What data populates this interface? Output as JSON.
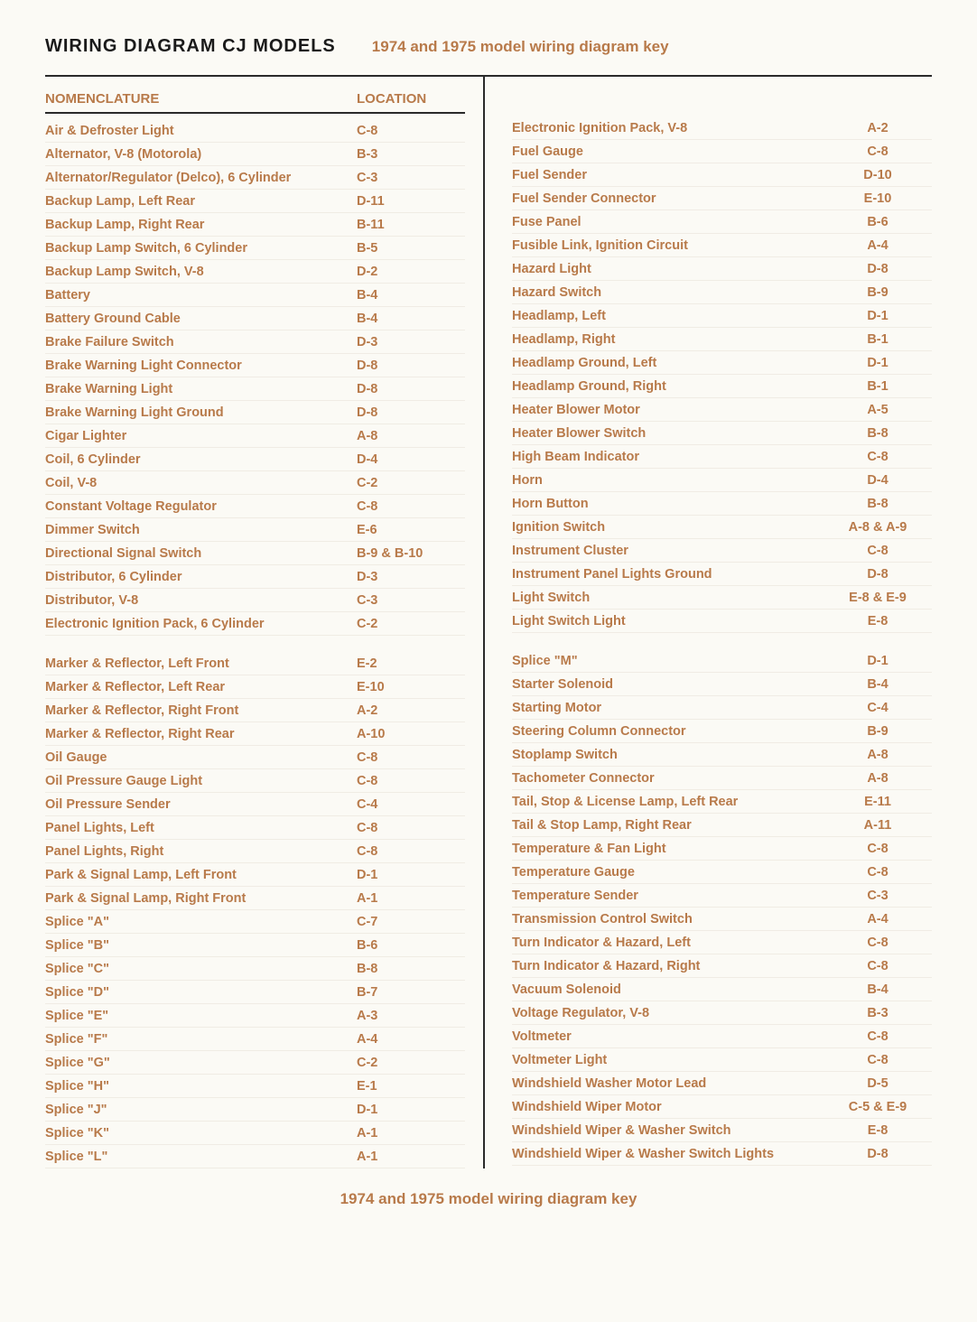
{
  "header": {
    "title": "WIRING DIAGRAM CJ MODELS",
    "subtitle": "1974 and 1975 model wiring diagram key"
  },
  "columnHeaders": {
    "name": "NOMENCLATURE",
    "location": "LOCATION"
  },
  "left": {
    "group1": [
      {
        "name": "Air & Defroster Light",
        "loc": "C-8"
      },
      {
        "name": "Alternator, V-8 (Motorola)",
        "loc": "B-3"
      },
      {
        "name": "Alternator/Regulator (Delco), 6 Cylinder",
        "loc": "C-3"
      },
      {
        "name": "Backup Lamp, Left Rear",
        "loc": "D-11"
      },
      {
        "name": "Backup Lamp, Right Rear",
        "loc": "B-11"
      },
      {
        "name": "Backup Lamp Switch, 6 Cylinder",
        "loc": "B-5"
      },
      {
        "name": "Backup Lamp Switch, V-8",
        "loc": "D-2"
      },
      {
        "name": "Battery",
        "loc": "B-4"
      },
      {
        "name": "Battery Ground Cable",
        "loc": "B-4"
      },
      {
        "name": "Brake Failure Switch",
        "loc": "D-3"
      },
      {
        "name": "Brake Warning Light Connector",
        "loc": "D-8"
      },
      {
        "name": "Brake Warning Light",
        "loc": "D-8"
      },
      {
        "name": "Brake Warning Light Ground",
        "loc": "D-8"
      },
      {
        "name": "Cigar Lighter",
        "loc": "A-8"
      },
      {
        "name": "Coil, 6 Cylinder",
        "loc": "D-4"
      },
      {
        "name": "Coil, V-8",
        "loc": "C-2"
      },
      {
        "name": "Constant Voltage Regulator",
        "loc": "C-8"
      },
      {
        "name": "Dimmer Switch",
        "loc": "E-6"
      },
      {
        "name": "Directional Signal Switch",
        "loc": "B-9 & B-10"
      },
      {
        "name": "Distributor, 6 Cylinder",
        "loc": "D-3"
      },
      {
        "name": "Distributor, V-8",
        "loc": "C-3"
      },
      {
        "name": "Electronic Ignition Pack, 6 Cylinder",
        "loc": "C-2"
      }
    ],
    "group2": [
      {
        "name": "Marker & Reflector, Left Front",
        "loc": "E-2"
      },
      {
        "name": "Marker & Reflector, Left Rear",
        "loc": "E-10"
      },
      {
        "name": "Marker & Reflector, Right Front",
        "loc": "A-2"
      },
      {
        "name": "Marker & Reflector, Right Rear",
        "loc": "A-10"
      },
      {
        "name": "Oil Gauge",
        "loc": "C-8"
      },
      {
        "name": "Oil Pressure Gauge Light",
        "loc": "C-8"
      },
      {
        "name": "Oil Pressure Sender",
        "loc": "C-4"
      },
      {
        "name": "Panel Lights, Left",
        "loc": "C-8"
      },
      {
        "name": "Panel Lights, Right",
        "loc": "C-8"
      },
      {
        "name": "Park & Signal Lamp, Left Front",
        "loc": "D-1"
      },
      {
        "name": "Park & Signal Lamp, Right Front",
        "loc": "A-1"
      },
      {
        "name": "Splice \"A\"",
        "loc": "C-7"
      },
      {
        "name": "Splice \"B\"",
        "loc": "B-6"
      },
      {
        "name": "Splice \"C\"",
        "loc": "B-8"
      },
      {
        "name": "Splice \"D\"",
        "loc": "B-7"
      },
      {
        "name": "Splice \"E\"",
        "loc": "A-3"
      },
      {
        "name": "Splice \"F\"",
        "loc": "A-4"
      },
      {
        "name": "Splice \"G\"",
        "loc": "C-2"
      },
      {
        "name": "Splice \"H\"",
        "loc": "E-1"
      },
      {
        "name": "Splice \"J\"",
        "loc": "D-1"
      },
      {
        "name": "Splice \"K\"",
        "loc": "A-1"
      },
      {
        "name": "Splice \"L\"",
        "loc": "A-1"
      }
    ]
  },
  "right": {
    "group1": [
      {
        "name": "Electronic Ignition Pack, V-8",
        "loc": "A-2"
      },
      {
        "name": "Fuel Gauge",
        "loc": "C-8"
      },
      {
        "name": "Fuel Sender",
        "loc": "D-10"
      },
      {
        "name": "Fuel Sender Connector",
        "loc": "E-10"
      },
      {
        "name": "Fuse Panel",
        "loc": "B-6"
      },
      {
        "name": "Fusible Link, Ignition Circuit",
        "loc": "A-4"
      },
      {
        "name": "Hazard Light",
        "loc": "D-8"
      },
      {
        "name": "Hazard Switch",
        "loc": "B-9"
      },
      {
        "name": "Headlamp, Left",
        "loc": "D-1"
      },
      {
        "name": "Headlamp, Right",
        "loc": "B-1"
      },
      {
        "name": "Headlamp Ground, Left",
        "loc": "D-1"
      },
      {
        "name": "Headlamp Ground, Right",
        "loc": "B-1"
      },
      {
        "name": "Heater Blower Motor",
        "loc": "A-5"
      },
      {
        "name": "Heater Blower Switch",
        "loc": "B-8"
      },
      {
        "name": "High Beam Indicator",
        "loc": "C-8"
      },
      {
        "name": "Horn",
        "loc": "D-4"
      },
      {
        "name": "Horn Button",
        "loc": "B-8"
      },
      {
        "name": "Ignition Switch",
        "loc": "A-8 & A-9"
      },
      {
        "name": "Instrument Cluster",
        "loc": "C-8"
      },
      {
        "name": "Instrument Panel Lights Ground",
        "loc": "D-8"
      },
      {
        "name": "Light Switch",
        "loc": "E-8 & E-9"
      },
      {
        "name": "Light Switch Light",
        "loc": "E-8"
      }
    ],
    "group2": [
      {
        "name": "Splice \"M\"",
        "loc": "D-1"
      },
      {
        "name": "Starter Solenoid",
        "loc": "B-4"
      },
      {
        "name": "Starting Motor",
        "loc": "C-4"
      },
      {
        "name": "Steering Column Connector",
        "loc": "B-9"
      },
      {
        "name": "Stoplamp Switch",
        "loc": "A-8"
      },
      {
        "name": "Tachometer Connector",
        "loc": "A-8"
      },
      {
        "name": "Tail, Stop & License Lamp, Left Rear",
        "loc": "E-11"
      },
      {
        "name": "Tail & Stop Lamp, Right Rear",
        "loc": "A-11"
      },
      {
        "name": "Temperature & Fan Light",
        "loc": "C-8"
      },
      {
        "name": "Temperature Gauge",
        "loc": "C-8"
      },
      {
        "name": "Temperature Sender",
        "loc": "C-3"
      },
      {
        "name": "Transmission Control Switch",
        "loc": "A-4"
      },
      {
        "name": "Turn Indicator & Hazard, Left",
        "loc": "C-8"
      },
      {
        "name": "Turn Indicator & Hazard, Right",
        "loc": "C-8"
      },
      {
        "name": "Vacuum Solenoid",
        "loc": "B-4"
      },
      {
        "name": "Voltage Regulator, V-8",
        "loc": "B-3"
      },
      {
        "name": "Voltmeter",
        "loc": "C-8"
      },
      {
        "name": "Voltmeter Light",
        "loc": "C-8"
      },
      {
        "name": "Windshield Washer Motor Lead",
        "loc": "D-5"
      },
      {
        "name": "Windshield Wiper Motor",
        "loc": "C-5 & E-9"
      },
      {
        "name": "Windshield Wiper & Washer Switch",
        "loc": "E-8"
      },
      {
        "name": "Windshield Wiper & Washer Switch Lights",
        "loc": "D-8"
      }
    ]
  },
  "footer": "1974 and 1975 model wiring diagram key",
  "style": {
    "text_color": "#b87a4a",
    "rule_color": "#2a2a2a",
    "background": "#fbfaf5",
    "title_fontsize": 20,
    "subtitle_fontsize": 17,
    "row_fontsize": 14.5
  }
}
